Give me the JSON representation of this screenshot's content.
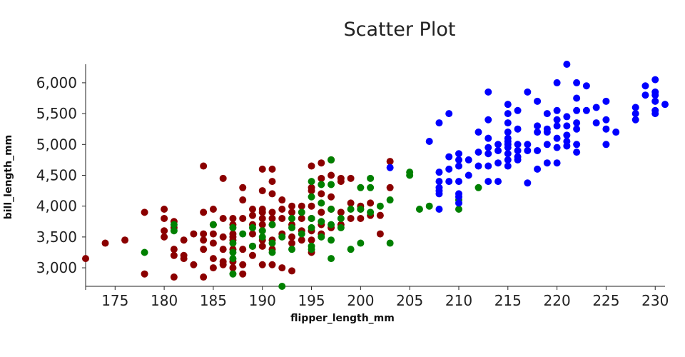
{
  "chart_data": {
    "type": "scatter",
    "title": "Scatter Plot",
    "xlabel": "flipper_length_mm",
    "ylabel": "bill_length_mm",
    "xlim": [
      172,
      231
    ],
    "ylim": [
      2700,
      6300
    ],
    "xticks": [
      175,
      180,
      185,
      190,
      195,
      200,
      205,
      210,
      215,
      220,
      225,
      230
    ],
    "yticks": [
      3000,
      3500,
      4000,
      4500,
      5000,
      5500,
      6000
    ],
    "ytick_labels": [
      "3,000",
      "3,500",
      "4,000",
      "4,500",
      "5,000",
      "5,500",
      "6,000"
    ],
    "grid": false,
    "legend": "none",
    "series": [
      {
        "color": "#8b0000",
        "points": [
          [
            172,
            3150
          ],
          [
            174,
            3400
          ],
          [
            176,
            3450
          ],
          [
            178,
            3900
          ],
          [
            178,
            2900
          ],
          [
            180,
            3950
          ],
          [
            180,
            3800
          ],
          [
            180,
            3600
          ],
          [
            180,
            3500
          ],
          [
            181,
            3750
          ],
          [
            181,
            3650
          ],
          [
            181,
            3300
          ],
          [
            181,
            3200
          ],
          [
            181,
            2850
          ],
          [
            182,
            3450
          ],
          [
            182,
            3200
          ],
          [
            182,
            3150
          ],
          [
            183,
            3550
          ],
          [
            183,
            3050
          ],
          [
            184,
            4650
          ],
          [
            184,
            3900
          ],
          [
            184,
            3550
          ],
          [
            184,
            3450
          ],
          [
            184,
            3300
          ],
          [
            184,
            2850
          ],
          [
            185,
            3950
          ],
          [
            185,
            3700
          ],
          [
            185,
            3550
          ],
          [
            185,
            3400
          ],
          [
            185,
            3150
          ],
          [
            185,
            3000
          ],
          [
            186,
            4450
          ],
          [
            186,
            3800
          ],
          [
            186,
            3500
          ],
          [
            186,
            3300
          ],
          [
            186,
            3100
          ],
          [
            186,
            3050
          ],
          [
            187,
            3800
          ],
          [
            187,
            3700
          ],
          [
            187,
            3550
          ],
          [
            187,
            3500
          ],
          [
            187,
            3450
          ],
          [
            187,
            3300
          ],
          [
            187,
            3100
          ],
          [
            187,
            3000
          ],
          [
            188,
            4300
          ],
          [
            188,
            4100
          ],
          [
            188,
            3800
          ],
          [
            188,
            3300
          ],
          [
            188,
            3050
          ],
          [
            188,
            2900
          ],
          [
            189,
            3950
          ],
          [
            189,
            3850
          ],
          [
            189,
            3700
          ],
          [
            189,
            3550
          ],
          [
            189,
            3350
          ],
          [
            189,
            3200
          ],
          [
            190,
            4600
          ],
          [
            190,
            4250
          ],
          [
            190,
            3950
          ],
          [
            190,
            3900
          ],
          [
            190,
            3800
          ],
          [
            190,
            3700
          ],
          [
            190,
            3600
          ],
          [
            190,
            3450
          ],
          [
            190,
            3350
          ],
          [
            190,
            3050
          ],
          [
            191,
            4600
          ],
          [
            191,
            4400
          ],
          [
            191,
            4200
          ],
          [
            191,
            3900
          ],
          [
            191,
            3800
          ],
          [
            191,
            3700
          ],
          [
            191,
            3450
          ],
          [
            191,
            3300
          ],
          [
            191,
            3050
          ],
          [
            192,
            4100
          ],
          [
            192,
            3950
          ],
          [
            192,
            3800
          ],
          [
            192,
            3550
          ],
          [
            192,
            3000
          ],
          [
            193,
            4000
          ],
          [
            193,
            3900
          ],
          [
            193,
            3700
          ],
          [
            193,
            3500
          ],
          [
            193,
            3400
          ],
          [
            193,
            2950
          ],
          [
            194,
            4000
          ],
          [
            194,
            3800
          ],
          [
            194,
            3600
          ],
          [
            194,
            3450
          ],
          [
            195,
            4650
          ],
          [
            195,
            4300
          ],
          [
            195,
            4250
          ],
          [
            195,
            4000
          ],
          [
            195,
            3800
          ],
          [
            195,
            3600
          ],
          [
            195,
            3450
          ],
          [
            195,
            3250
          ],
          [
            196,
            4700
          ],
          [
            196,
            4450
          ],
          [
            196,
            4200
          ],
          [
            196,
            3900
          ],
          [
            196,
            3700
          ],
          [
            196,
            3550
          ],
          [
            197,
            4750
          ],
          [
            197,
            4500
          ],
          [
            197,
            4150
          ],
          [
            197,
            3950
          ],
          [
            197,
            3650
          ],
          [
            198,
            4450
          ],
          [
            198,
            4400
          ],
          [
            198,
            3900
          ],
          [
            198,
            3700
          ],
          [
            199,
            4450
          ],
          [
            199,
            4050
          ],
          [
            199,
            3800
          ],
          [
            200,
            4000
          ],
          [
            200,
            3950
          ],
          [
            200,
            3800
          ],
          [
            201,
            4050
          ],
          [
            201,
            3850
          ],
          [
            202,
            3850
          ],
          [
            202,
            3550
          ],
          [
            203,
            4725
          ],
          [
            203,
            4300
          ]
        ]
      },
      {
        "color": "#008000",
        "points": [
          [
            178,
            3250
          ],
          [
            181,
            3700
          ],
          [
            181,
            3600
          ],
          [
            185,
            3700
          ],
          [
            187,
            3650
          ],
          [
            187,
            3400
          ],
          [
            187,
            3250
          ],
          [
            187,
            3150
          ],
          [
            187,
            2900
          ],
          [
            188,
            3550
          ],
          [
            189,
            3650
          ],
          [
            189,
            3350
          ],
          [
            190,
            3600
          ],
          [
            190,
            3500
          ],
          [
            191,
            3700
          ],
          [
            191,
            3400
          ],
          [
            191,
            3250
          ],
          [
            192,
            3500
          ],
          [
            192,
            2700
          ],
          [
            193,
            3800
          ],
          [
            193,
            3650
          ],
          [
            193,
            3300
          ],
          [
            194,
            3900
          ],
          [
            194,
            3550
          ],
          [
            195,
            4400
          ],
          [
            195,
            4150
          ],
          [
            195,
            3800
          ],
          [
            195,
            3650
          ],
          [
            195,
            3350
          ],
          [
            195,
            3300
          ],
          [
            196,
            4350
          ],
          [
            196,
            4050
          ],
          [
            196,
            3750
          ],
          [
            196,
            3500
          ],
          [
            197,
            4750
          ],
          [
            197,
            4350
          ],
          [
            197,
            3950
          ],
          [
            197,
            3700
          ],
          [
            197,
            3450
          ],
          [
            197,
            3150
          ],
          [
            198,
            3800
          ],
          [
            198,
            3650
          ],
          [
            199,
            3950
          ],
          [
            199,
            3300
          ],
          [
            200,
            4300
          ],
          [
            200,
            3950
          ],
          [
            200,
            3400
          ],
          [
            201,
            4450
          ],
          [
            201,
            4300
          ],
          [
            201,
            3900
          ],
          [
            202,
            4000
          ],
          [
            203,
            4100
          ],
          [
            203,
            3400
          ],
          [
            205,
            4550
          ],
          [
            205,
            4500
          ],
          [
            206,
            3950
          ],
          [
            207,
            4000
          ],
          [
            210,
            4100
          ],
          [
            210,
            3950
          ],
          [
            212,
            4300
          ]
        ]
      },
      {
        "color": "#0000ff",
        "points": [
          [
            203,
            4625
          ],
          [
            207,
            5050
          ],
          [
            208,
            5350
          ],
          [
            208,
            4550
          ],
          [
            208,
            4400
          ],
          [
            208,
            4300
          ],
          [
            208,
            4250
          ],
          [
            208,
            4200
          ],
          [
            208,
            3950
          ],
          [
            209,
            5500
          ],
          [
            209,
            4800
          ],
          [
            209,
            4600
          ],
          [
            209,
            4400
          ],
          [
            210,
            4850
          ],
          [
            210,
            4750
          ],
          [
            210,
            4650
          ],
          [
            210,
            4400
          ],
          [
            210,
            4200
          ],
          [
            210,
            4150
          ],
          [
            210,
            4050
          ],
          [
            211,
            4750
          ],
          [
            211,
            4500
          ],
          [
            212,
            5200
          ],
          [
            212,
            4875
          ],
          [
            212,
            4650
          ],
          [
            213,
            5850
          ],
          [
            213,
            5400
          ],
          [
            213,
            5100
          ],
          [
            213,
            4950
          ],
          [
            213,
            4850
          ],
          [
            213,
            4650
          ],
          [
            213,
            4400
          ],
          [
            214,
            5000
          ],
          [
            214,
            4900
          ],
          [
            214,
            4700
          ],
          [
            214,
            4400
          ],
          [
            215,
            5650
          ],
          [
            215,
            5500
          ],
          [
            215,
            5350
          ],
          [
            215,
            5200
          ],
          [
            215,
            5100
          ],
          [
            215,
            5050
          ],
          [
            215,
            5000
          ],
          [
            215,
            4950
          ],
          [
            215,
            4850
          ],
          [
            215,
            4750
          ],
          [
            215,
            4650
          ],
          [
            216,
            5550
          ],
          [
            216,
            5250
          ],
          [
            216,
            5000
          ],
          [
            216,
            4900
          ],
          [
            216,
            4800
          ],
          [
            216,
            4750
          ],
          [
            217,
            5850
          ],
          [
            217,
            5000
          ],
          [
            217,
            4900
          ],
          [
            217,
            4375
          ],
          [
            218,
            5700
          ],
          [
            218,
            5300
          ],
          [
            218,
            5200
          ],
          [
            218,
            4900
          ],
          [
            218,
            4600
          ],
          [
            219,
            5500
          ],
          [
            219,
            5250
          ],
          [
            219,
            5200
          ],
          [
            219,
            5000
          ],
          [
            219,
            4700
          ],
          [
            220,
            6000
          ],
          [
            220,
            5550
          ],
          [
            220,
            5400
          ],
          [
            220,
            5300
          ],
          [
            220,
            5100
          ],
          [
            220,
            4950
          ],
          [
            220,
            4700
          ],
          [
            221,
            6300
          ],
          [
            221,
            5450
          ],
          [
            221,
            5300
          ],
          [
            221,
            5150
          ],
          [
            221,
            5050
          ],
          [
            221,
            4975
          ],
          [
            222,
            6000
          ],
          [
            222,
            5750
          ],
          [
            222,
            5550
          ],
          [
            222,
            5350
          ],
          [
            222,
            5250
          ],
          [
            222,
            5000
          ],
          [
            222,
            4875
          ],
          [
            223,
            5950
          ],
          [
            223,
            5550
          ],
          [
            224,
            5600
          ],
          [
            224,
            5350
          ],
          [
            225,
            5700
          ],
          [
            225,
            5400
          ],
          [
            225,
            5250
          ],
          [
            225,
            5000
          ],
          [
            226,
            5200
          ],
          [
            228,
            5600
          ],
          [
            228,
            5500
          ],
          [
            228,
            5400
          ],
          [
            229,
            5950
          ],
          [
            229,
            5800
          ],
          [
            230,
            6050
          ],
          [
            230,
            5850
          ],
          [
            230,
            5800
          ],
          [
            230,
            5700
          ],
          [
            230,
            5550
          ],
          [
            230,
            5500
          ],
          [
            231,
            5650
          ]
        ]
      }
    ]
  }
}
